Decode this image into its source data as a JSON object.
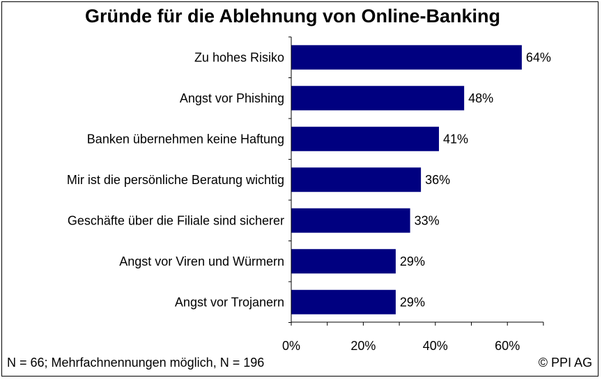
{
  "chart_data": {
    "type": "bar",
    "orientation": "horizontal",
    "title": "Gründe für die Ablehnung von Online-Banking",
    "categories": [
      "Zu hohes Risiko",
      "Angst vor Phishing",
      "Banken übernehmen keine Haftung",
      "Mir ist die persönliche Beratung wichtig",
      "Geschäfte über die Filiale sind sicherer",
      "Angst vor Viren und Würmern",
      "Angst vor Trojanern"
    ],
    "values": [
      64,
      48,
      41,
      36,
      33,
      29,
      29
    ],
    "value_labels": [
      "64%",
      "48%",
      "41%",
      "36%",
      "33%",
      "29%",
      "29%"
    ],
    "xlim": [
      0,
      70
    ],
    "x_ticks": [
      0,
      20,
      40,
      60
    ],
    "x_tick_labels": [
      "0%",
      "20%",
      "40%",
      "60%"
    ],
    "bar_color": "#000080",
    "grid": false,
    "legend": "none"
  },
  "footer": {
    "note": "N = 66; Mehrfachnennungen möglich, N = 196",
    "copyright": "© PPI AG"
  }
}
